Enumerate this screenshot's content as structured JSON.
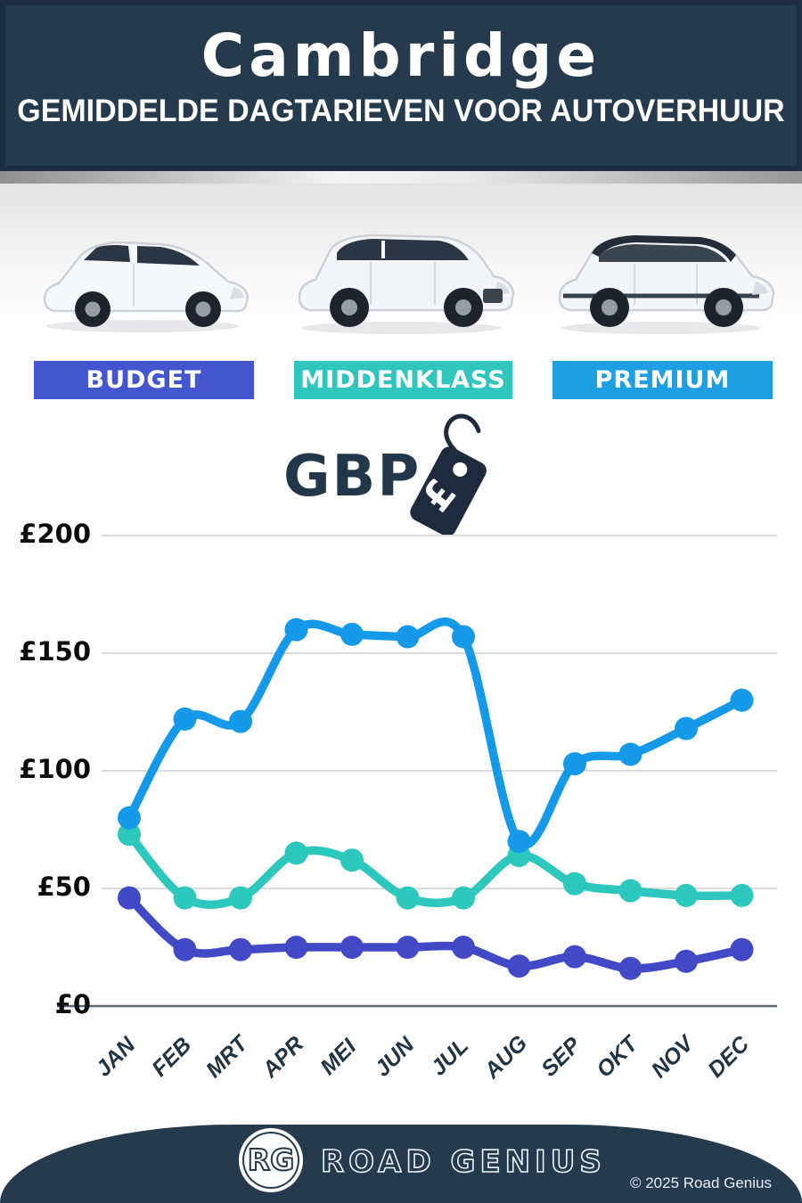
{
  "header": {
    "title": "Cambridge",
    "subtitle": "GEMIDDELDE DAGTARIEVEN VOOR AUTOVERHUUR"
  },
  "categories_section": {
    "items": [
      {
        "label": "BUDGET",
        "color": "#4355cf",
        "image": "compact-hatchback-photo"
      },
      {
        "label": "MIDDENKLASS",
        "color": "#2fc7bd",
        "image": "midsize-suv-photo"
      },
      {
        "label": "PREMIUM",
        "color": "#1e9fe4",
        "image": "premium-suv-photo"
      }
    ]
  },
  "currency": {
    "label": "GBP",
    "symbol": "£",
    "icon": "price-tag-icon"
  },
  "chart_data": {
    "type": "line",
    "title": "Gemiddelde dagtarieven voor autoverhuur in Cambridge (GBP)",
    "categories": [
      "JAN",
      "FEB",
      "MRT",
      "APR",
      "MEI",
      "JUN",
      "JUL",
      "AUG",
      "SEP",
      "OKT",
      "NOV",
      "DEC"
    ],
    "series": [
      {
        "name": "Budget",
        "color": "#4149c6",
        "values": [
          46,
          24,
          24,
          25,
          25,
          25,
          25,
          17,
          21,
          16,
          19,
          24
        ]
      },
      {
        "name": "Middenklass",
        "color": "#2cc8bd",
        "values": [
          73,
          46,
          46,
          65,
          62,
          46,
          46,
          64,
          52,
          49,
          47,
          47
        ]
      },
      {
        "name": "Premium",
        "color": "#149ae8",
        "values": [
          80,
          122,
          121,
          160,
          158,
          157,
          157,
          70,
          103,
          107,
          118,
          130
        ]
      }
    ],
    "y_ticks": [
      {
        "value": 0,
        "label": "£0"
      },
      {
        "value": 50,
        "label": "£50"
      },
      {
        "value": 100,
        "label": "£100"
      },
      {
        "value": 150,
        "label": "£150"
      },
      {
        "value": 200,
        "label": "£200"
      }
    ],
    "ylim": [
      0,
      200
    ],
    "grid": true,
    "legend_position": "none",
    "currency": "GBP"
  },
  "footer": {
    "logo_initials": "RG",
    "brand": "ROAD GENIUS",
    "copyright": "© 2025 Road Genius"
  }
}
